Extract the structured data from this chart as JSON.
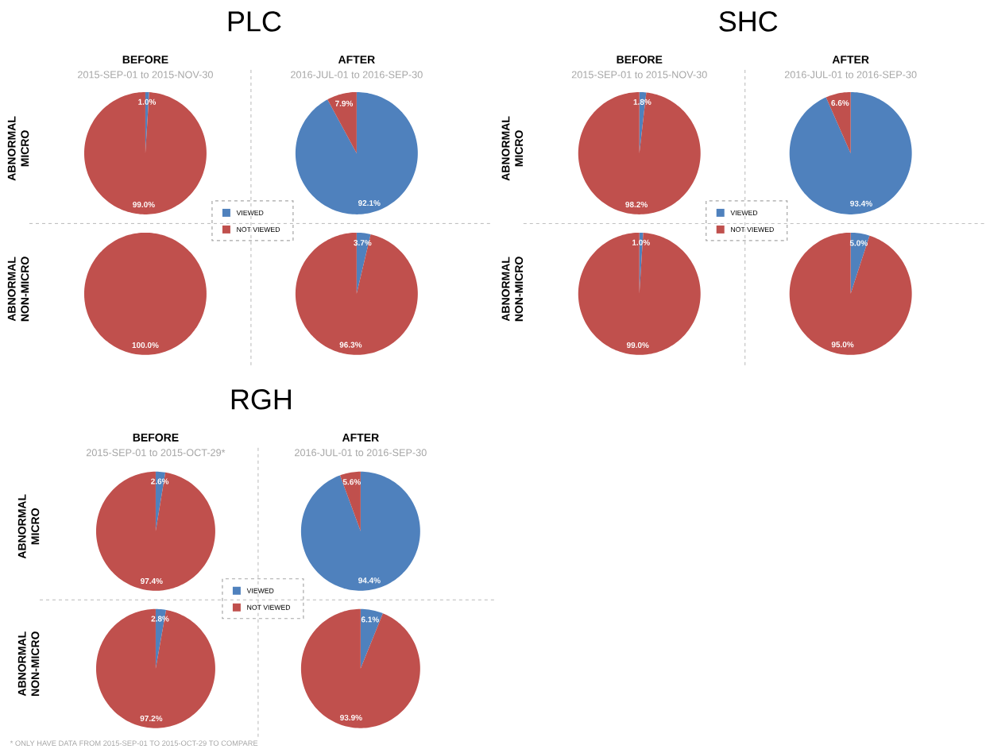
{
  "chart_data": [
    {
      "type": "pie",
      "title": "BEFORE",
      "subtitle": "2015-SEP-01 to 2015-NOV-30",
      "ylabel": "ABNORMAL MICRO",
      "categories": [
        "VIEWED",
        "NOT VIEWED"
      ],
      "values": [
        1.0,
        99.0
      ],
      "colors": [
        "#4f81bd",
        "#c0504d"
      ],
      "value_labels": [
        "1.0%",
        "99.0%"
      ],
      "legend": "bottom right",
      "annotations": [
        "PLC"
      ]
    },
    {
      "type": "pie",
      "title": "AFTER",
      "subtitle": "2016-JUL-01 to 2016-SEP-30",
      "categories": [
        null,
        null
      ],
      "values": [
        92.1,
        7.9
      ],
      "colors": [
        "#4f81bd",
        "#c0504d"
      ],
      "value_labels": [
        "92.1%",
        "7.9%"
      ]
    },
    {
      "type": "pie",
      "ylabel": "ABNORMAL NON-MICRO",
      "categories": [
        null,
        null
      ],
      "values": [
        0,
        100.0
      ],
      "colors": [
        "#4f81bd",
        "#c0504d"
      ],
      "value_labels": [
        null,
        "100.0%"
      ]
    },
    {
      "type": "pie",
      "categories": [
        null,
        null
      ],
      "values": [
        3.7,
        96.3
      ],
      "colors": [
        "#4f81bd",
        "#c0504d"
      ],
      "value_labels": [
        "3.7%",
        "96.3%"
      ]
    },
    {
      "type": "pie",
      "title": "BEFORE",
      "subtitle": "2015-SEP-01 to 2015-NOV-30",
      "ylabel": "ABNORMAL MICRO",
      "categories": [
        "VIEWED",
        "NOT VIEWED"
      ],
      "values": [
        1.8,
        98.2
      ],
      "colors": [
        "#4f81bd",
        "#c0504d"
      ],
      "value_labels": [
        "1.8%",
        "98.2%"
      ],
      "legend": "bottom right",
      "annotations": [
        "SHC"
      ]
    },
    {
      "type": "pie",
      "title": "AFTER",
      "subtitle": "2016-JUL-01 to 2016-SEP-30",
      "categories": [
        null,
        null
      ],
      "values": [
        93.4,
        6.6
      ],
      "colors": [
        "#4f81bd",
        "#c0504d"
      ],
      "value_labels": [
        "93.4%",
        "6.6%"
      ]
    },
    {
      "type": "pie",
      "ylabel": "ABNORMAL NON-MICRO",
      "categories": [
        null,
        null
      ],
      "values": [
        1.0,
        99.0
      ],
      "colors": [
        "#4f81bd",
        "#c0504d"
      ],
      "value_labels": [
        "1.0%",
        "99.0%"
      ]
    },
    {
      "type": "pie",
      "categories": [
        null,
        null
      ],
      "values": [
        5.0,
        95.0
      ],
      "colors": [
        "#4f81bd",
        "#c0504d"
      ],
      "value_labels": [
        "5.0%",
        "95.0%"
      ]
    },
    {
      "type": "pie",
      "title": "BEFORE",
      "subtitle": "2015-SEP-01 to 2015-OCT-29*",
      "ylabel": "ABNORMAL MICRO",
      "categories": [
        "VIEWED",
        "NOT VIEWED"
      ],
      "values": [
        2.6,
        97.4
      ],
      "colors": [
        "#4f81bd",
        "#c0504d"
      ],
      "value_labels": [
        "2.6%",
        "97.4%"
      ],
      "legend": "bottom right",
      "annotations": [
        "RGH"
      ]
    },
    {
      "type": "pie",
      "title": "AFTER",
      "subtitle": "2016-JUL-01 to 2016-SEP-30",
      "categories": [
        null,
        null
      ],
      "values": [
        94.4,
        5.6
      ],
      "colors": [
        "#4f81bd",
        "#c0504d"
      ],
      "value_labels": [
        "94.4%",
        "5.6%"
      ]
    },
    {
      "type": "pie",
      "ylabel": "ABNORMAL NON-MICRO",
      "categories": [
        null,
        null
      ],
      "values": [
        2.8,
        97.2
      ],
      "colors": [
        "#4f81bd",
        "#c0504d"
      ],
      "value_labels": [
        "2.8%",
        "97.2%"
      ],
      "annotations": [
        "* ONLY HAVE DATA FROM 2015-SEP-01 TO 2015-OCT-29 TO COMPARE"
      ]
    },
    {
      "type": "pie",
      "categories": [
        null,
        null
      ],
      "values": [
        6.1,
        93.9
      ],
      "colors": [
        "#4f81bd",
        "#c0504d"
      ],
      "value_labels": [
        "6.1%",
        "93.9%"
      ]
    }
  ]
}
